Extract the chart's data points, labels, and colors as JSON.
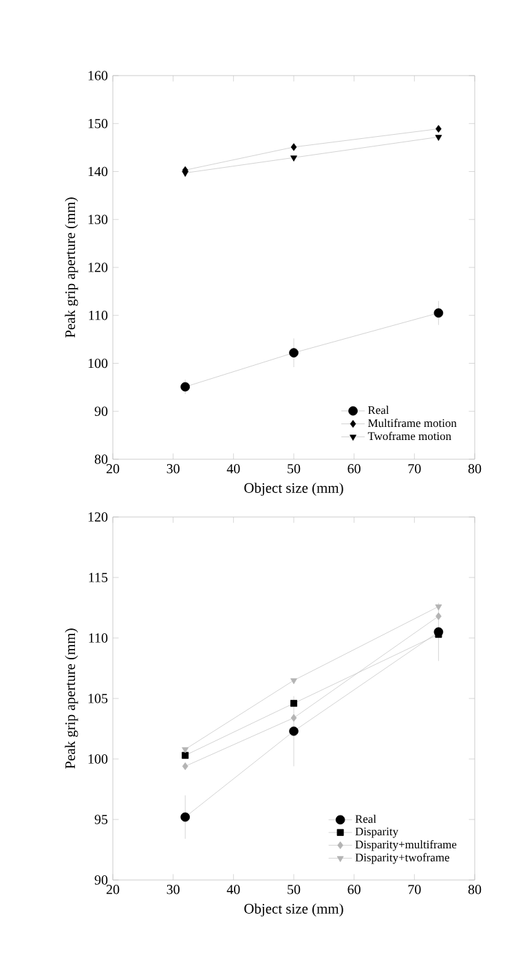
{
  "chart_data": [
    {
      "type": "line",
      "xlabel": "Object size (mm)",
      "ylabel": "Peak grip aperture (mm)",
      "xlim": [
        20,
        80
      ],
      "xticks": [
        20,
        30,
        40,
        50,
        60,
        70,
        80
      ],
      "ylim": [
        80,
        160
      ],
      "yticks": [
        80,
        90,
        100,
        110,
        120,
        130,
        140,
        150,
        160
      ],
      "grid": false,
      "legend": "bottom right",
      "line_style": "solid",
      "x": [
        32,
        50,
        74
      ],
      "series": [
        {
          "name": "Real",
          "color": "#000000",
          "marker": "circle",
          "values": [
            95.1,
            102.2,
            110.5
          ],
          "errors": [
            1.5,
            3,
            2.5
          ]
        },
        {
          "name": "Multiframe motion",
          "color": "#000000",
          "marker": "diamond",
          "values": [
            140.3,
            145.1,
            148.9
          ]
        },
        {
          "name": "Twoframe motion",
          "color": "#000000",
          "marker": "triangle",
          "values": [
            139.7,
            142.9,
            147.2
          ]
        }
      ]
    },
    {
      "type": "line",
      "xlabel": "Object size (mm)",
      "ylabel": "Peak grip aperture (mm)",
      "xlim": [
        20,
        80
      ],
      "xticks": [
        20,
        30,
        40,
        50,
        60,
        70,
        80
      ],
      "ylim": [
        90,
        120
      ],
      "yticks": [
        90,
        95,
        100,
        105,
        110,
        115,
        120
      ],
      "grid": false,
      "legend": "bottom right",
      "line_style": "solid",
      "x": [
        32,
        50,
        74
      ],
      "series": [
        {
          "name": "Real",
          "color": "#000000",
          "marker": "circle",
          "values": [
            95.2,
            102.3,
            110.5
          ],
          "errors": [
            1.8,
            2.9,
            2.4
          ]
        },
        {
          "name": "Disparity",
          "color": "#000000",
          "marker": "square",
          "values": [
            100.3,
            104.6,
            110.3
          ]
        },
        {
          "name": "Disparity+multiframe",
          "color": "#b4b4b4",
          "marker": "diamond",
          "values": [
            99.4,
            103.4,
            111.8
          ]
        },
        {
          "name": "Disparity+twoframe",
          "color": "#b4b4b4",
          "marker": "triangle",
          "values": [
            100.8,
            106.5,
            112.6
          ]
        }
      ]
    }
  ]
}
